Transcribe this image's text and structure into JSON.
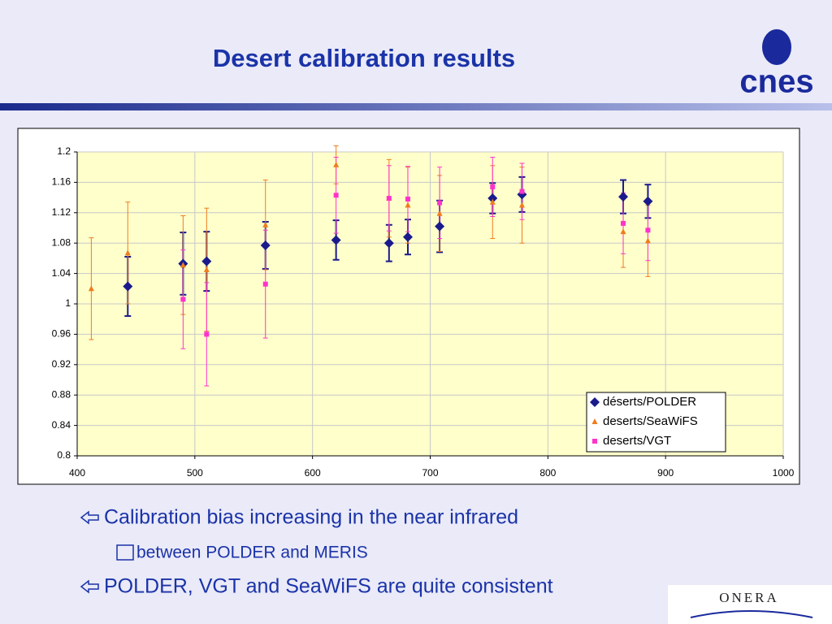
{
  "slide": {
    "title": "Desert calibration results",
    "bullets": [
      "Calibration bias increasing in the near infrared",
      "between POLDER and MERIS",
      "POLDER, VGT and SeaWiFS are quite consistent"
    ],
    "logos": {
      "cnes": "cnes",
      "onera": "ONERA"
    }
  },
  "chart_data": {
    "type": "scatter",
    "xlim": [
      400,
      1000
    ],
    "xticks": [
      400,
      500,
      600,
      700,
      800,
      900,
      1000
    ],
    "ylim": [
      0.8,
      1.2
    ],
    "yticks": [
      0.8,
      0.84,
      0.88,
      0.92,
      0.96,
      1,
      1.04,
      1.08,
      1.12,
      1.16,
      1.2
    ],
    "grid": true,
    "legend": "lower right",
    "series": [
      {
        "name": "déserts/POLDER",
        "color": "#1a1a8c",
        "marker": "diamond",
        "x": [
          443,
          490,
          510,
          560,
          620,
          665,
          681,
          708,
          753,
          778,
          864,
          885
        ],
        "values": [
          1.023,
          1.053,
          1.056,
          1.077,
          1.084,
          1.08,
          1.088,
          1.102,
          1.139,
          1.144,
          1.141,
          1.135
        ],
        "errors": [
          0.039,
          0.041,
          0.039,
          0.031,
          0.026,
          0.024,
          0.023,
          0.034,
          0.02,
          0.023,
          0.022,
          0.022
        ]
      },
      {
        "name": "deserts/SeaWiFS",
        "color": "#f07c1c",
        "marker": "triangle",
        "x": [
          412,
          443,
          490,
          510,
          560,
          620,
          665,
          681,
          708,
          753,
          778,
          864,
          885
        ],
        "values": [
          1.02,
          1.067,
          1.051,
          1.045,
          1.104,
          1.183,
          1.139,
          1.13,
          1.119,
          1.134,
          1.13,
          1.095,
          1.083
        ],
        "errors": [
          0.067,
          0.067,
          0.065,
          0.081,
          0.059,
          0.025,
          0.051,
          0.05,
          0.05,
          0.048,
          0.05,
          0.047,
          0.047
        ]
      },
      {
        "name": "deserts/VGT",
        "color": "#ff33cc",
        "marker": "square",
        "x": [
          490,
          510,
          560,
          620,
          665,
          681,
          708,
          753,
          778,
          864,
          885
        ],
        "values": [
          1.006,
          0.96,
          1.026,
          1.143,
          1.139,
          1.138,
          1.133,
          1.154,
          1.148,
          1.106,
          1.097
        ],
        "errors": [
          0.065,
          0.068,
          0.071,
          0.05,
          0.043,
          0.043,
          0.047,
          0.039,
          0.037,
          0.04,
          0.04
        ]
      }
    ]
  }
}
